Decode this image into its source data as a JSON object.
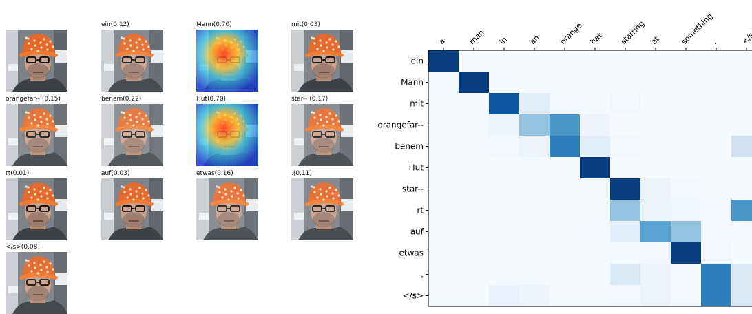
{
  "attention_grid": {
    "captions": [
      "",
      "ein(0.12)",
      "Mann(0.70)",
      "mit(0.03)",
      "orangefar-- (0.15)",
      "benem(0.22)",
      "Hut(0.70)",
      "star-- (0.17)",
      "rt(0.01)",
      "auf(0.03)",
      "etwas(0.16)",
      ".(0.11)",
      "</s>(0.08)"
    ],
    "weights": [
      0,
      0.12,
      0.7,
      0.03,
      0.15,
      0.22,
      0.7,
      0.17,
      0.01,
      0.03,
      0.16,
      0.11,
      0.08
    ]
  },
  "chart_data": {
    "type": "heatmap",
    "title": "",
    "xlabel": "",
    "ylabel": "",
    "x_categories": [
      "a",
      "man",
      "in",
      "an",
      "orange",
      "hat",
      "starring",
      "at",
      "something",
      ".",
      "</s>"
    ],
    "y_categories": [
      "ein",
      "Mann",
      "mit",
      "orangefar--",
      "benem",
      "Hut",
      "star--",
      "rt",
      "auf",
      "etwas",
      ".",
      "</s>"
    ],
    "colormap": "Blues",
    "values": [
      [
        0.95,
        0.01,
        0.01,
        0.01,
        0.01,
        0.01,
        0.01,
        0.01,
        0.01,
        0.01,
        0.01
      ],
      [
        0.02,
        0.95,
        0.02,
        0.01,
        0.01,
        0.01,
        0.01,
        0.01,
        0.01,
        0.01,
        0.01
      ],
      [
        0.01,
        0.01,
        0.85,
        0.1,
        0.02,
        0.01,
        0.03,
        0.01,
        0.01,
        0.01,
        0.01
      ],
      [
        0.01,
        0.01,
        0.05,
        0.4,
        0.6,
        0.05,
        0.01,
        0.01,
        0.01,
        0.01,
        0.01
      ],
      [
        0.01,
        0.01,
        0.02,
        0.06,
        0.7,
        0.1,
        0.02,
        0.01,
        0.01,
        0.01,
        0.2
      ],
      [
        0.01,
        0.01,
        0.01,
        0.01,
        0.01,
        0.95,
        0.01,
        0.01,
        0.01,
        0.01,
        0.01
      ],
      [
        0.01,
        0.01,
        0.01,
        0.01,
        0.01,
        0.01,
        0.95,
        0.06,
        0.02,
        0.01,
        0.01
      ],
      [
        0.01,
        0.01,
        0.01,
        0.01,
        0.01,
        0.01,
        0.4,
        0.05,
        0.04,
        0.02,
        0.6
      ],
      [
        0.01,
        0.01,
        0.01,
        0.01,
        0.01,
        0.02,
        0.1,
        0.55,
        0.4,
        0.02,
        0.03
      ],
      [
        0.01,
        0.01,
        0.01,
        0.01,
        0.01,
        0.01,
        0.02,
        0.03,
        0.95,
        0.03,
        0.01
      ],
      [
        0.01,
        0.01,
        0.01,
        0.01,
        0.01,
        0.01,
        0.15,
        0.06,
        0.03,
        0.7,
        0.15
      ],
      [
        0.01,
        0.01,
        0.07,
        0.05,
        0.01,
        0.01,
        0.02,
        0.06,
        0.02,
        0.7,
        0.15
      ]
    ]
  }
}
